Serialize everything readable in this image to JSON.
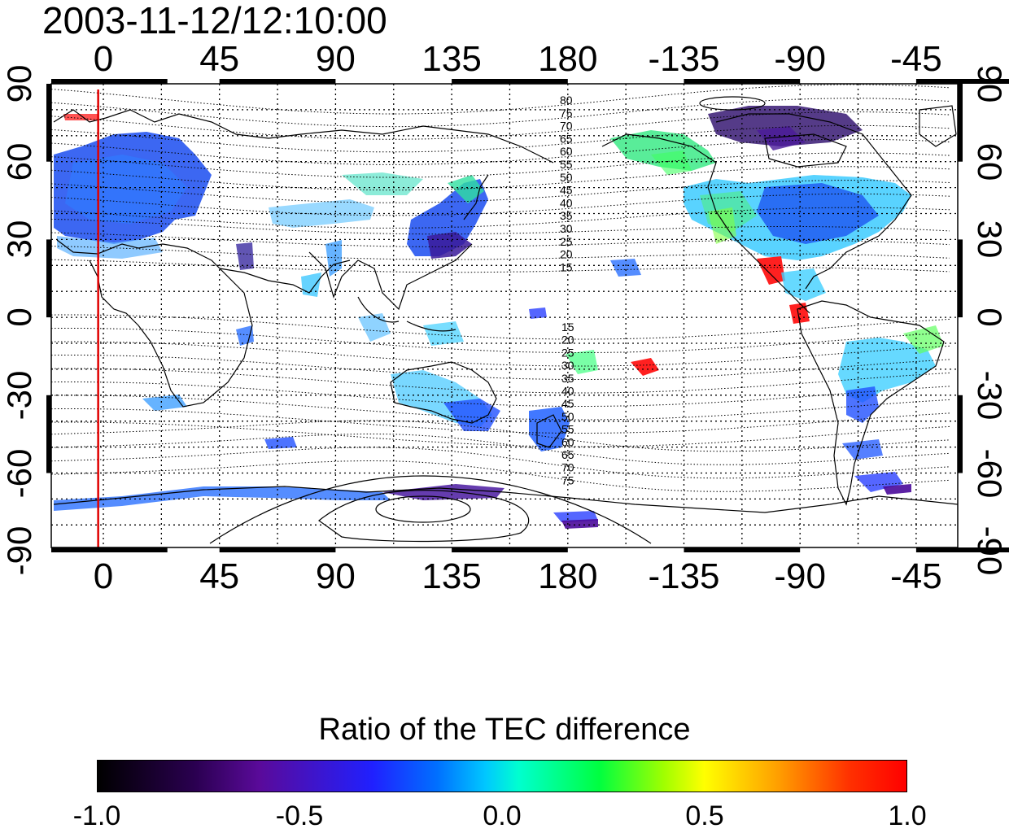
{
  "title": "2003-11-12/12:10:00",
  "map": {
    "top_lon_ticks": [
      "0",
      "45",
      "90",
      "135",
      "180",
      "-135",
      "-90",
      "-45"
    ],
    "bottom_lon_ticks": [
      "0",
      "45",
      "90",
      "135",
      "180",
      "-135",
      "-90",
      "-45"
    ],
    "left_lat_ticks": [
      "90",
      "60",
      "30",
      "0",
      "-30",
      "-60",
      "-90"
    ],
    "right_lat_ticks": [
      "90",
      "60",
      "30",
      "0",
      "-30",
      "-60",
      "-90"
    ],
    "contour_labels_north": [
      "80",
      "75",
      "70",
      "65",
      "60",
      "55",
      "50",
      "45",
      "40",
      "35",
      "30",
      "25",
      "20",
      "15"
    ],
    "contour_labels_south": [
      "15",
      "20",
      "25",
      "30",
      "35",
      "40",
      "45",
      "50",
      "55",
      "60",
      "65",
      "70",
      "75"
    ],
    "reference_longitude": -2,
    "reference_line_color": "#e00000"
  },
  "colorbar": {
    "title": "Ratio of the TEC difference",
    "ticks": [
      "-1.0",
      "-0.5",
      "0.0",
      "0.5",
      "1.0"
    ],
    "range": [
      -1.0,
      1.0
    ]
  }
}
